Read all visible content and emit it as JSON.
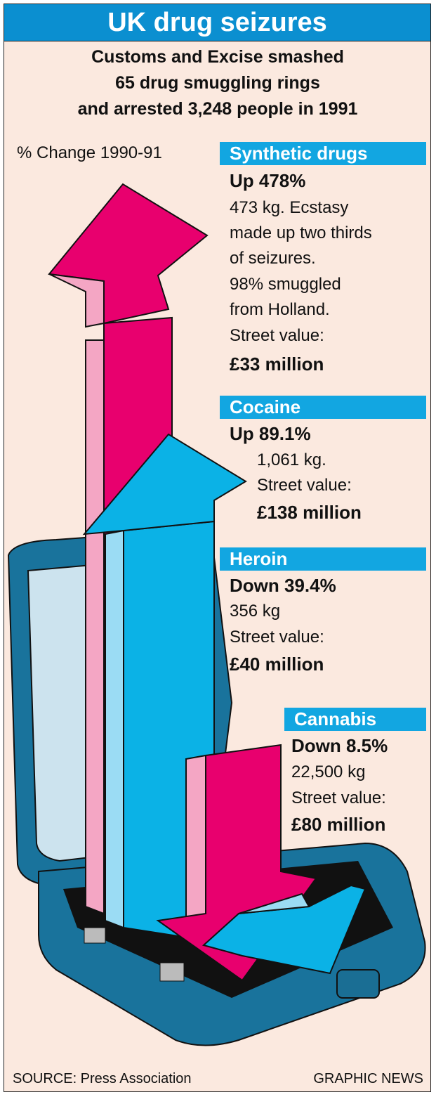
{
  "title": "UK drug seizures",
  "subtitle": [
    "Customs and Excise smashed",
    "65 drug smuggling rings",
    "and arrested 3,248 people in 1991"
  ],
  "change_label": "% Change 1990-91",
  "colors": {
    "title_bg": "#0b8fd0",
    "label_bg": "#12a6e1",
    "up_pink": "#e8006e",
    "cyan": "#0bb2e6",
    "background": "#fbe9df"
  },
  "chart_data": {
    "type": "bar",
    "categories": [
      "Synthetic drugs",
      "Cocaine",
      "Heroin",
      "Cannabis"
    ],
    "values": [
      478,
      89.1,
      -39.4,
      -8.5
    ],
    "units": "%",
    "direction_labels": [
      "Up 478%",
      "Up 89.1%",
      "Down 39.4%",
      "Down 8.5%"
    ],
    "details": [
      [
        "473 kg. Ecstasy",
        "made up two thirds",
        "of seizures.",
        "98% smuggled",
        "from Holland.",
        "Street value:"
      ],
      [
        "1,061 kg.",
        "Street value:"
      ],
      [
        "356 kg",
        "Street value:"
      ],
      [
        "22,500 kg",
        "Street value:"
      ]
    ],
    "street_values": [
      "£33 million",
      "£138 million",
      "£40 million",
      "£80 million"
    ]
  },
  "source": "SOURCE: Press Association",
  "credit": "GRAPHIC NEWS"
}
